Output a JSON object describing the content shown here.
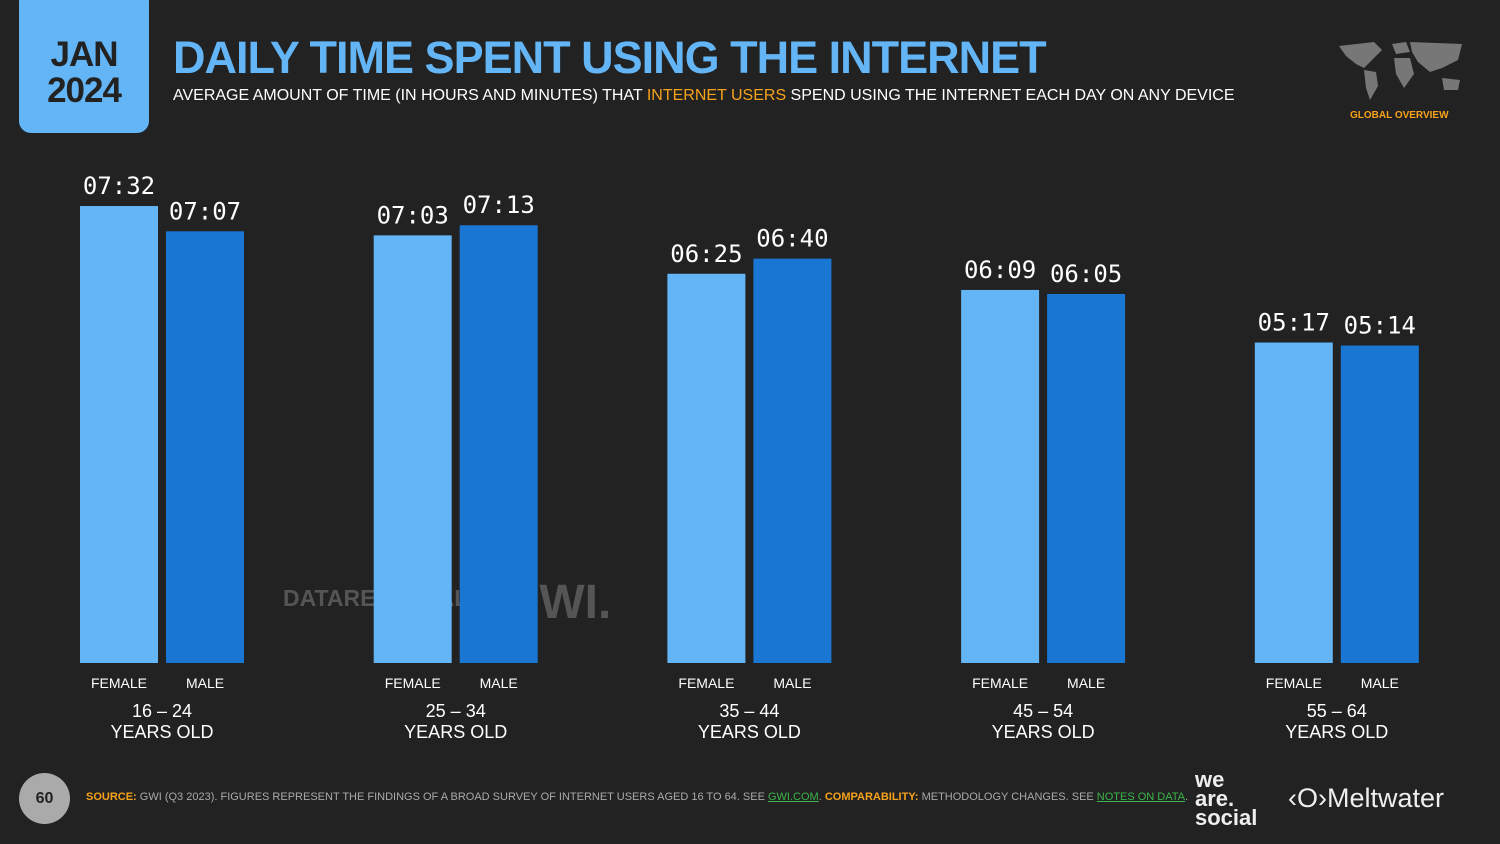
{
  "header": {
    "month": "JAN",
    "year": "2024",
    "title": "DAILY TIME SPENT USING THE INTERNET",
    "subtitle_pre": "AVERAGE AMOUNT OF TIME (IN HOURS AND MINUTES) THAT ",
    "subtitle_hl": "INTERNET USERS",
    "subtitle_post": " SPEND USING THE INTERNET EACH DAY ON ANY DEVICE",
    "badge": "GLOBAL OVERVIEW"
  },
  "colors": {
    "female": "#63b5f6",
    "male": "#1976d2",
    "accent": "#f7a21b",
    "link": "#3cb54a"
  },
  "chart_data": {
    "type": "bar",
    "categories": [
      "16 – 24",
      "25 – 34",
      "35 – 44",
      "45 – 54",
      "55 – 64"
    ],
    "category_suffix": "YEARS OLD",
    "series": [
      {
        "name": "FEMALE",
        "values": [
          "07:32",
          "07:03",
          "06:25",
          "06:09",
          "05:17"
        ]
      },
      {
        "name": "MALE",
        "values": [
          "07:07",
          "07:13",
          "06:40",
          "06:05",
          "05:14"
        ]
      }
    ],
    "unit": "hh:mm",
    "grid": false
  },
  "watermarks": {
    "datareportal": "DATAREPORTAL",
    "gwi": "GWI."
  },
  "footer": {
    "page": "60",
    "source_label": "SOURCE:",
    "source_text": " GWI (Q3 2023). FIGURES REPRESENT THE FINDINGS OF A BROAD SURVEY OF INTERNET USERS AGED 16 TO 64. SEE ",
    "source_link": "GWI.COM",
    "comp_label": " COMPARABILITY:",
    "comp_text": " METHODOLOGY CHANGES. SEE ",
    "comp_link": "NOTES ON DATA",
    "end": ".",
    "logo1": "we are social",
    "logo2": "Meltwater"
  }
}
